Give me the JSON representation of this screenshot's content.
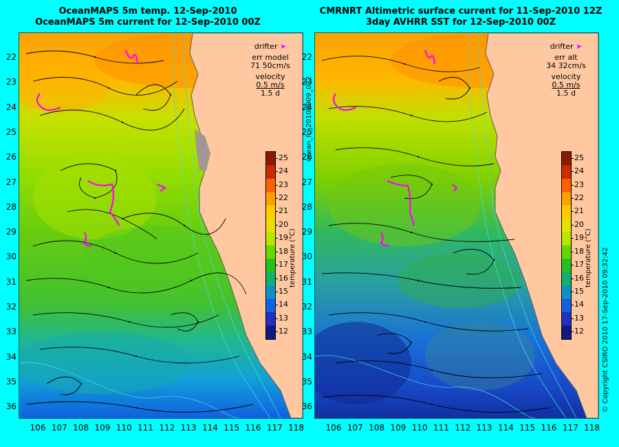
{
  "left_panel": {
    "title_line1": "OceanMAPS 5m temp. 12-Sep-2010",
    "title_line2": "OceanMAPS 5m current for 12-Sep-2010 00Z",
    "legend": {
      "drifter": "drifter",
      "err_label": "err model",
      "err_value": "71 50cm/s",
      "velocity": "velocity",
      "vel_scale": "0.5 m/s",
      "duration": "1.5 d"
    }
  },
  "right_panel": {
    "title_line1": "CMRNRT Altimetric surface current for 11-Sep-2010 12Z",
    "title_line2": "3day AVHRR SST for 12-Sep-2010 00Z",
    "legend": {
      "drifter": "drifter",
      "err_label": "err alt",
      "err_value": "34 32cm/s",
      "velocity": "velocity",
      "vel_scale": "0.5 m/s",
      "duration": "1.5 d"
    }
  },
  "center_vertical_text": "ocean_fc_20100909_072",
  "right_vertical_text": "© Copyright CSIRO 2010   17-Sep-2010 09:32:42",
  "lat_labels": [
    "22",
    "23",
    "24",
    "25",
    "26",
    "27",
    "28",
    "29",
    "30",
    "31",
    "32",
    "33",
    "34",
    "35",
    "36"
  ],
  "lon_labels": [
    "106",
    "107",
    "108",
    "109",
    "110",
    "111",
    "112",
    "113",
    "114",
    "115",
    "116",
    "117",
    "118"
  ],
  "colorbar": {
    "label": "temperature (°C)",
    "ticks": [
      "25",
      "24",
      "23",
      "22",
      "21",
      "20",
      "19",
      "18",
      "17",
      "16",
      "15",
      "14",
      "13",
      "12"
    ],
    "colors": [
      "#8b1a00",
      "#cc2a00",
      "#ff6000",
      "#ffa000",
      "#ffcc00",
      "#e8e000",
      "#b8e400",
      "#66d800",
      "#22c020",
      "#10b070",
      "#1090c8",
      "#1060e8",
      "#2030c0",
      "#101880"
    ],
    "range": [
      11.5,
      26
    ]
  },
  "colors": {
    "background": "#00ffff",
    "land": "#ffc8a0",
    "drifter": "#ff00ff",
    "arrows": "#000000"
  }
}
